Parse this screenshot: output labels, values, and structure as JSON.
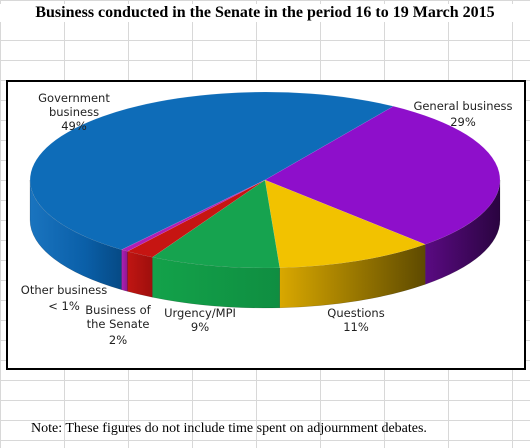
{
  "page": {
    "title": "Business conducted in the Senate in the period 16 to 19 March 2015",
    "note": "Note: These figures do not include time spent on adjournment debates."
  },
  "chart_data": {
    "type": "pie",
    "style": "3d",
    "title": "Business conducted in the Senate in the period 16 to 19 March 2015",
    "slices": [
      {
        "name": "Government business",
        "value": 49,
        "label": "49%",
        "color": "#0E6CB8"
      },
      {
        "name": "General business",
        "value": 29,
        "label": "29%",
        "color": "#8E0FCB"
      },
      {
        "name": "Questions",
        "value": 11,
        "label": "11%",
        "color": "#F2C200"
      },
      {
        "name": "Urgency/MPI",
        "value": 9,
        "label": "9%",
        "color": "#16A34F"
      },
      {
        "name": "Business of the Senate",
        "value": 2,
        "label": "2%",
        "color": "#C61512"
      },
      {
        "name": "Other business",
        "value": 0.5,
        "label": "< 1%",
        "color": "#B01FB5"
      }
    ]
  }
}
